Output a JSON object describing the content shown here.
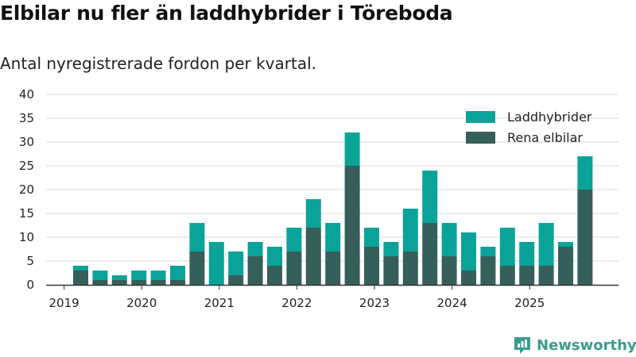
{
  "title": "Elbilar nu fler än laddhybrider i Töreboda",
  "subtitle": "Antal nyregistrerade fordon per kvartal.",
  "brand": {
    "name": "Newsworthy",
    "icon": "newsworthy-logo-icon"
  },
  "colors": {
    "phev": "#0aa39a",
    "bev": "#355f5b",
    "grid": "#d9d9d9",
    "axis": "#333333",
    "brand": "#3a9c8f"
  },
  "chart_data": {
    "type": "bar",
    "stacked": true,
    "title": "Elbilar nu fler än laddhybrider i Töreboda",
    "subtitle": "Antal nyregistrerade fordon per kvartal.",
    "xlabel": "",
    "ylabel": "",
    "ylim": [
      0,
      40
    ],
    "yticks": [
      0,
      5,
      10,
      15,
      20,
      25,
      30,
      35,
      40
    ],
    "grid": true,
    "legend_position": "top-right",
    "year_ticks": [
      "2019",
      "2020",
      "2021",
      "2022",
      "2023",
      "2024",
      "2025"
    ],
    "categories": [
      "2019 Q2",
      "2019 Q3",
      "2019 Q4",
      "2020 Q1",
      "2020 Q2",
      "2020 Q3",
      "2020 Q4",
      "2021 Q1",
      "2021 Q2",
      "2021 Q3",
      "2021 Q4",
      "2022 Q1",
      "2022 Q2",
      "2022 Q3",
      "2022 Q4",
      "2023 Q1",
      "2023 Q2",
      "2023 Q3",
      "2023 Q4",
      "2024 Q1",
      "2024 Q2",
      "2024 Q3",
      "2024 Q4",
      "2025 Q1",
      "2025 Q2",
      "2025 Q3",
      "2025 Q4"
    ],
    "series": [
      {
        "name": "Laddhybrider",
        "color": "#0aa39a",
        "values": [
          1,
          2,
          1,
          2,
          2,
          3,
          6,
          9,
          5,
          3,
          4,
          5,
          6,
          6,
          7,
          4,
          3,
          9,
          11,
          7,
          8,
          2,
          8,
          5,
          9,
          1,
          7
        ]
      },
      {
        "name": "Rena elbilar",
        "color": "#355f5b",
        "values": [
          3,
          1,
          1,
          1,
          1,
          1,
          7,
          0,
          2,
          6,
          4,
          7,
          12,
          7,
          25,
          8,
          6,
          7,
          13,
          6,
          3,
          6,
          4,
          4,
          4,
          8,
          20
        ]
      }
    ]
  }
}
